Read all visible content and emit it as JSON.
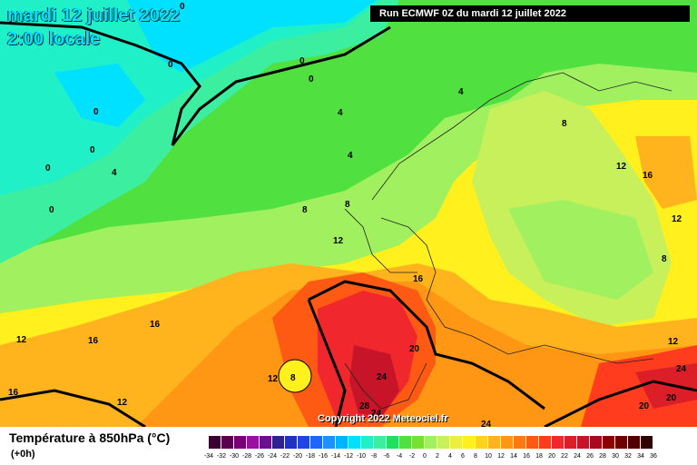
{
  "header": {
    "date_label": "mardi 12 juillet 2022",
    "time_label": "2:00 locale",
    "run_label": "Run ECMWF 0Z du mardi 12 juillet 2022"
  },
  "footer": {
    "copyright": "Copyright 2022 Meteociel.fr",
    "legend_title": "Température à 850hPa (°C)",
    "legend_subtitle": "(+0h)"
  },
  "legend": {
    "colors": [
      "#3b0032",
      "#5a0050",
      "#7a0078",
      "#9a10a0",
      "#6a1090",
      "#302090",
      "#2030c0",
      "#1e44e6",
      "#1e64ff",
      "#1e90ff",
      "#00b4ff",
      "#00e0ff",
      "#20f0c8",
      "#3ceea0",
      "#20e060",
      "#50e040",
      "#78e030",
      "#a0f060",
      "#c8f05a",
      "#ecf03c",
      "#fff01e",
      "#ffd21e",
      "#ffb41e",
      "#ff9614",
      "#ff7814",
      "#ff5a14",
      "#ff3c1e",
      "#f0282d",
      "#dc1e28",
      "#c81428",
      "#aa0a1e",
      "#8c0000",
      "#6e0000",
      "#500000",
      "#300000"
    ],
    "ticks": [
      "-34",
      "-32",
      "-30",
      "-28",
      "-26",
      "-24",
      "-22",
      "-20",
      "-18",
      "-16",
      "-14",
      "-12",
      "-10",
      "-8",
      "-6",
      "-4",
      "-2",
      "0",
      "2",
      "4",
      "6",
      "8",
      "10",
      "12",
      "14",
      "16",
      "18",
      "20",
      "22",
      "24",
      "26",
      "28",
      "30",
      "32",
      "34",
      "36"
    ]
  },
  "map_labels": [
    {
      "text": "0"
    },
    {
      "text": "0"
    },
    {
      "text": "0"
    },
    {
      "text": "0"
    },
    {
      "text": "0"
    },
    {
      "text": "0"
    },
    {
      "text": "0"
    },
    {
      "text": "0"
    },
    {
      "text": "4"
    },
    {
      "text": "4"
    },
    {
      "text": "4"
    },
    {
      "text": "4"
    },
    {
      "text": "8"
    },
    {
      "text": "8"
    },
    {
      "text": "8"
    },
    {
      "text": "8"
    },
    {
      "text": "8"
    },
    {
      "text": "12"
    },
    {
      "text": "12"
    },
    {
      "text": "12"
    },
    {
      "text": "12"
    },
    {
      "text": "12"
    },
    {
      "text": "12"
    },
    {
      "text": "12"
    },
    {
      "text": "16"
    },
    {
      "text": "16"
    },
    {
      "text": "16"
    },
    {
      "text": "16"
    },
    {
      "text": "16"
    },
    {
      "text": "20"
    },
    {
      "text": "20"
    },
    {
      "text": "20"
    },
    {
      "text": "24"
    },
    {
      "text": "24"
    },
    {
      "text": "24"
    },
    {
      "text": "28"
    },
    {
      "text": "24"
    }
  ]
}
